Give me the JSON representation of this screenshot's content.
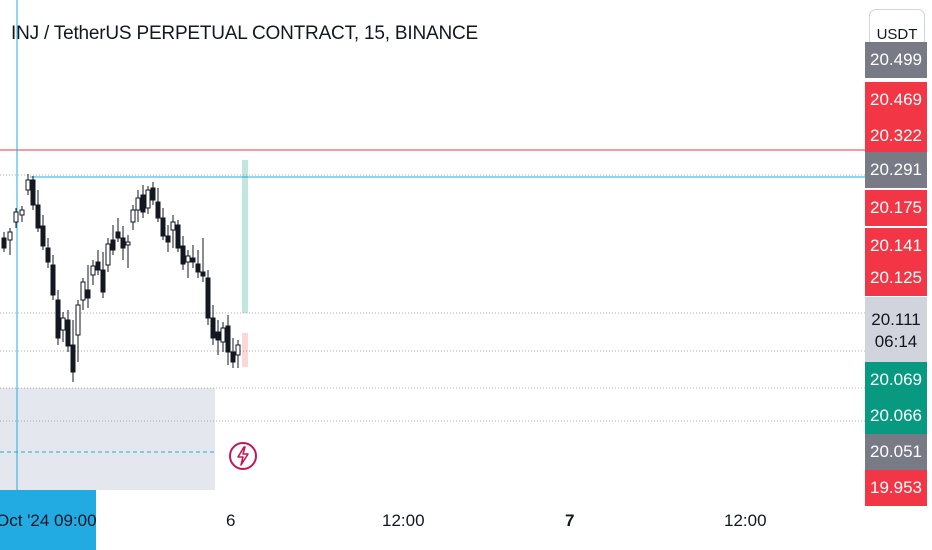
{
  "header": {
    "title": "INJ / TetherUS PERPETUAL CONTRACT, 15, BINANCE"
  },
  "currency_button": {
    "label": "USDT"
  },
  "price_axis": {
    "badges": [
      {
        "value": "20.499",
        "color": "#787b86"
      },
      {
        "value": "20.469",
        "color": "#f23645"
      },
      {
        "value": "20.322",
        "color": "#f23645"
      },
      {
        "value": "20.291",
        "color": "#787b86"
      },
      {
        "value": "20.175",
        "color": "#f23645"
      },
      {
        "value": "20.141",
        "color": "#f23645"
      },
      {
        "value": "20.125",
        "color": "#f23645"
      },
      {
        "value": "20.111",
        "sub": "06:14",
        "color": "#d1d4dc"
      },
      {
        "value": "20.069",
        "color": "#089981"
      },
      {
        "value": "20.066",
        "color": "#089981"
      },
      {
        "value": "20.051",
        "color": "#787b86"
      },
      {
        "value": "19.953",
        "color": "#f23645"
      }
    ]
  },
  "time_axis": {
    "highlight": "Oct '24  09:00",
    "labels": [
      "6",
      "12:00",
      "7",
      "12:00"
    ]
  },
  "icons": {
    "alert": "lightning-icon"
  },
  "colors": {
    "up": "#089981",
    "down": "#f23645",
    "neutral_candle": "#131722",
    "cursor": "#22abe3"
  }
}
